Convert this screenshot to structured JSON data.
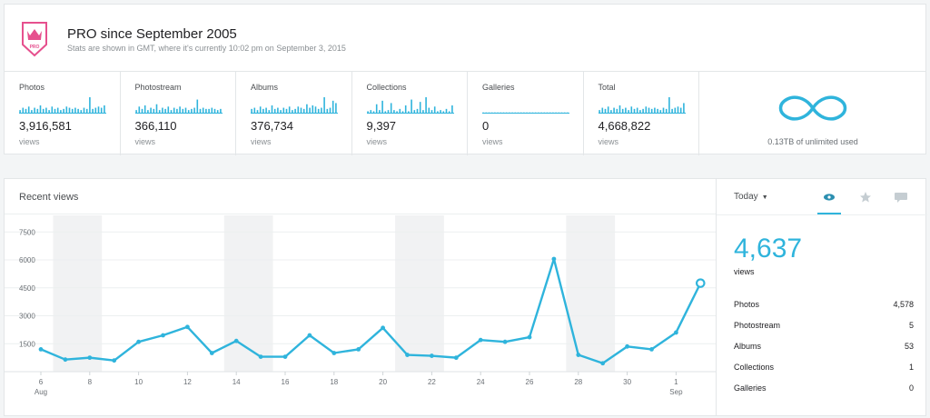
{
  "header": {
    "badge_text": "PRO",
    "title": "PRO since September 2005",
    "subtitle": "Stats are shown in GMT, where it's currently 10:02 pm on September 3, 2015"
  },
  "stats": [
    {
      "label": "Photos",
      "value": "3,916,581",
      "unit": "views",
      "spark": [
        3,
        5,
        4,
        6,
        3,
        5,
        4,
        7,
        4,
        5,
        3,
        6,
        4,
        5,
        3,
        4,
        6,
        5,
        4,
        5,
        4,
        3,
        5,
        4,
        14,
        4,
        5,
        6,
        5,
        7
      ]
    },
    {
      "label": "Photostream",
      "value": "366,110",
      "unit": "views",
      "spark": [
        3,
        6,
        4,
        7,
        3,
        5,
        4,
        8,
        3,
        5,
        4,
        6,
        3,
        5,
        4,
        6,
        4,
        5,
        3,
        4,
        5,
        12,
        4,
        5,
        4,
        4,
        5,
        4,
        3,
        4
      ]
    },
    {
      "label": "Albums",
      "value": "376,734",
      "unit": "views",
      "spark": [
        4,
        5,
        3,
        6,
        4,
        5,
        3,
        7,
        4,
        5,
        3,
        5,
        4,
        6,
        3,
        4,
        6,
        5,
        4,
        8,
        5,
        7,
        6,
        4,
        5,
        14,
        4,
        5,
        11,
        9
      ]
    },
    {
      "label": "Collections",
      "value": "9,397",
      "unit": "views",
      "spark": [
        2,
        3,
        2,
        8,
        3,
        11,
        2,
        3,
        9,
        3,
        2,
        4,
        2,
        7,
        2,
        12,
        3,
        4,
        10,
        3,
        14,
        5,
        3,
        6,
        2,
        3,
        2,
        4,
        2,
        7
      ]
    },
    {
      "label": "Galleries",
      "value": "0",
      "unit": "views",
      "spark": [
        1,
        1,
        1,
        1,
        1,
        1,
        1,
        1,
        1,
        1,
        1,
        1,
        1,
        1,
        1,
        1,
        1,
        1,
        1,
        1,
        1,
        1,
        1,
        1,
        1,
        1,
        1,
        1,
        1,
        1
      ]
    },
    {
      "label": "Total",
      "value": "4,668,822",
      "unit": "views",
      "spark": [
        3,
        5,
        4,
        6,
        3,
        5,
        4,
        7,
        4,
        5,
        3,
        6,
        4,
        5,
        3,
        4,
        6,
        5,
        4,
        5,
        4,
        3,
        5,
        4,
        14,
        4,
        5,
        6,
        5,
        9
      ]
    }
  ],
  "storage": {
    "text": "0.13TB of unlimited used",
    "icon": "infinity-icon"
  },
  "recent": {
    "title": "Recent views",
    "range_label": "Today",
    "tabs": [
      {
        "name": "views-tab",
        "icon": "eye-icon",
        "active": true
      },
      {
        "name": "faves-tab",
        "icon": "star-icon",
        "active": false
      },
      {
        "name": "comments-tab",
        "icon": "comment-icon",
        "active": false
      }
    ],
    "total": "4,637",
    "total_unit": "views",
    "breakdown": [
      {
        "label": "Photos",
        "value": "4,578"
      },
      {
        "label": "Photostream",
        "value": "5"
      },
      {
        "label": "Albums",
        "value": "53"
      },
      {
        "label": "Collections",
        "value": "1"
      },
      {
        "label": "Galleries",
        "value": "0"
      }
    ]
  },
  "chart_data": {
    "type": "line",
    "x": [
      "Aug 6",
      "Aug 7",
      "Aug 8",
      "Aug 9",
      "Aug 10",
      "Aug 11",
      "Aug 12",
      "Aug 13",
      "Aug 14",
      "Aug 15",
      "Aug 16",
      "Aug 17",
      "Aug 18",
      "Aug 19",
      "Aug 20",
      "Aug 21",
      "Aug 22",
      "Aug 23",
      "Aug 24",
      "Aug 25",
      "Aug 26",
      "Aug 27",
      "Aug 28",
      "Aug 29",
      "Aug 30",
      "Aug 31",
      "Sep 1",
      "Sep 2"
    ],
    "series": [
      {
        "values": [
          1200,
          650,
          750,
          600,
          1600,
          1950,
          2400,
          1000,
          1650,
          800,
          800,
          1950,
          1000,
          1200,
          2350,
          900,
          850,
          750,
          1700,
          1600,
          1850,
          6050,
          900,
          450,
          1350,
          1200,
          2100,
          4750
        ]
      }
    ],
    "y_ticks": [
      1500,
      3000,
      4500,
      6000,
      7500
    ],
    "ylim": [
      0,
      8000
    ],
    "x_tick_labels": [
      "6",
      "8",
      "10",
      "12",
      "14",
      "16",
      "18",
      "20",
      "22",
      "24",
      "26",
      "28",
      "30",
      "1"
    ],
    "x_month_labels": [
      {
        "at": "Aug 6",
        "text": "Aug"
      },
      {
        "at": "Sep 1",
        "text": "Sep"
      }
    ],
    "weekend_bands": [
      [
        "Aug 7",
        "Aug 8"
      ],
      [
        "Aug 14",
        "Aug 15"
      ],
      [
        "Aug 21",
        "Aug 22"
      ],
      [
        "Aug 28",
        "Aug 29"
      ]
    ],
    "color": "#2fb4dc",
    "grid": true
  }
}
